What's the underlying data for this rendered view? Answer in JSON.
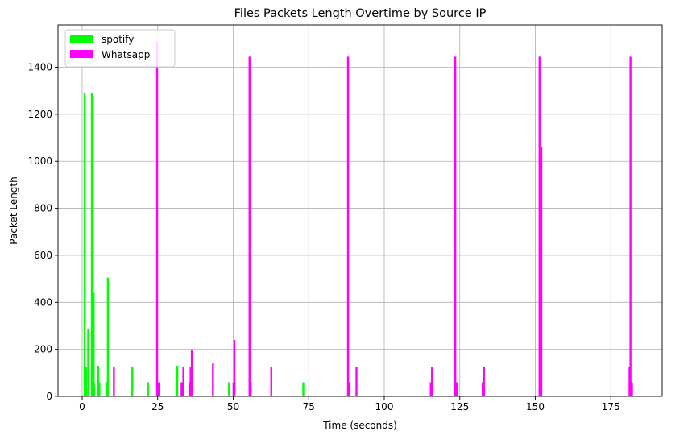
{
  "chart_data": {
    "type": "bar",
    "title": "Files Packets Length Overtime by Source IP",
    "xlabel": "Time (seconds)",
    "ylabel": "Packet Length",
    "xlim": [
      -8,
      192
    ],
    "ylim": [
      0,
      1580
    ],
    "xticks": [
      0,
      25,
      50,
      75,
      100,
      125,
      150,
      175
    ],
    "yticks": [
      0,
      200,
      400,
      600,
      800,
      1000,
      1200,
      1400
    ],
    "grid": true,
    "legend_position": "top-left",
    "bar_width": 0.5,
    "series": [
      {
        "name": "spotify",
        "color": "#00ff00",
        "x": [
          0.8,
          1.3,
          2.0,
          3.2,
          3.5,
          3.8,
          4.0,
          5.3,
          5.7,
          8.0,
          8.5,
          16.6,
          21.8,
          31.2,
          31.5,
          48.6,
          50.4,
          73.2
        ],
        "values": [
          1290,
          125,
          285,
          1290,
          1280,
          440,
          60,
          130,
          60,
          60,
          505,
          125,
          60,
          60,
          130,
          60,
          60,
          60
        ]
      },
      {
        "name": "Whatsapp",
        "color": "#ff00ff",
        "x": [
          10.5,
          24.8,
          25.4,
          32.9,
          33.5,
          35.5,
          35.9,
          36.3,
          43.3,
          50.1,
          50.4,
          55.4,
          55.8,
          62.6,
          88.0,
          88.5,
          90.8,
          115.4,
          115.8,
          123.5,
          124.0,
          132.6,
          133.0,
          151.4,
          151.7,
          152.0,
          181.2,
          181.5,
          182.0
        ],
        "values": [
          125,
          1510,
          60,
          60,
          125,
          60,
          125,
          195,
          140,
          60,
          240,
          1445,
          60,
          125,
          1445,
          60,
          125,
          60,
          125,
          1445,
          60,
          60,
          125,
          1445,
          1000,
          1060,
          125,
          1445,
          60
        ]
      }
    ]
  }
}
